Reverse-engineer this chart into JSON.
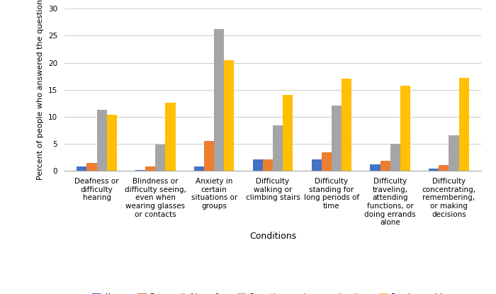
{
  "categories": [
    "Deafness or\ndifficulty\nhearing",
    "Blindness or\ndifficulty seeing,\neven when\nwearing glasses\nor contacts",
    "Anxiety in\ncertain\nsituations or\ngroups",
    "Difficulty\nwalking or\nclimbing stairs",
    "Difficulty\nstanding for\nlong periods of\ntime",
    "Difficulty\ntraveling,\nattending\nfunctions, or\ndoing errands\nalone",
    "Difficulty\nconcentrating,\nremembering,\nor making\ndecisions"
  ],
  "series": {
    "Always": [
      0.8,
      0.1,
      0.7,
      2.1,
      2.1,
      1.2,
      0.4
    ],
    "Frequently/Very often": [
      1.4,
      0.8,
      5.5,
      2.1,
      3.4,
      1.8,
      1.0
    ],
    "Sometimes or in some situations": [
      11.2,
      4.8,
      26.3,
      8.4,
      12.0,
      4.9,
      6.5
    ],
    "Rarely or seldom": [
      10.3,
      12.6,
      20.5,
      14.0,
      17.1,
      15.7,
      17.2
    ]
  },
  "colors": {
    "Always": "#4472C4",
    "Frequently/Very often": "#ED7D31",
    "Sometimes or in some situations": "#A5A5A5",
    "Rarely or seldom": "#FFC000"
  },
  "ylabel": "Percent of people who answered the question",
  "xlabel": "Conditions",
  "ylim": [
    0,
    30
  ],
  "yticks": [
    0,
    5,
    10,
    15,
    20,
    25,
    30
  ],
  "background_color": "#ffffff",
  "grid_color": "#d0d0d0",
  "bar_width": 0.17,
  "xlabel_fontsize": 9,
  "ylabel_fontsize": 8,
  "tick_fontsize": 7.5,
  "legend_fontsize": 7.5
}
